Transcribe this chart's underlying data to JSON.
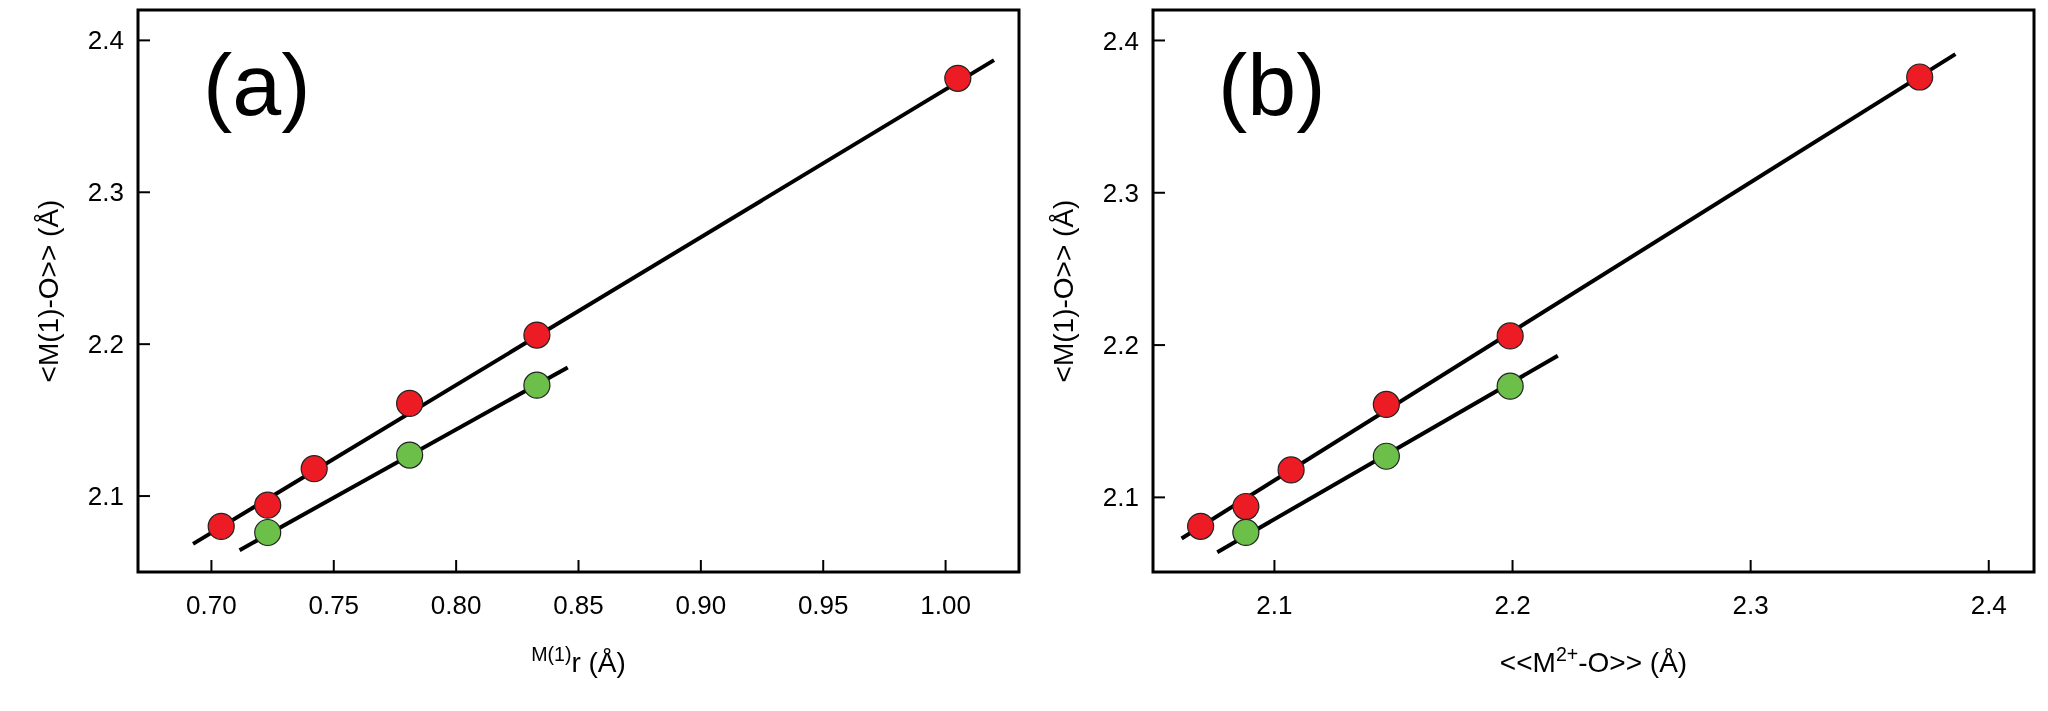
{
  "chart_data": [
    {
      "type": "scatter",
      "xlabel": "$^{M(1)}$r (Å)",
      "ylabel": "<M(1)-O>> (Å)",
      "annotations": [
        "(a)"
      ],
      "grid": false,
      "xlim": [
        0.67,
        1.03
      ],
      "xticks": [
        {
          "value": 0.7,
          "label": "0.70"
        },
        {
          "value": 0.75,
          "label": "0.75"
        },
        {
          "value": 0.8,
          "label": "0.80"
        },
        {
          "value": 0.85,
          "label": "0.85"
        },
        {
          "value": 0.9,
          "label": "0.90"
        },
        {
          "value": 0.95,
          "label": "0.95"
        },
        {
          "value": 1.0,
          "label": "1.00"
        }
      ],
      "ylim": [
        2.05,
        2.42
      ],
      "yticks": [
        2.1,
        2.2,
        2.3,
        2.4
      ],
      "series": [
        {
          "type": "line",
          "marker": "none",
          "color": "#000000",
          "x": [
            0.6925,
            1.0198
          ],
          "values": [
            2.0685,
            2.387
          ]
        },
        {
          "type": "line",
          "marker": "none",
          "color": "#000000",
          "x": [
            0.7115,
            0.8456
          ],
          "values": [
            2.0644,
            2.1847
          ]
        },
        {
          "marker": "circle",
          "color": "#ed1c24",
          "x": [
            0.704,
            0.723,
            0.742,
            0.781,
            0.833,
            1.005
          ],
          "values": [
            2.08,
            2.094,
            2.118,
            2.161,
            2.206,
            2.375
          ]
        },
        {
          "marker": "circle",
          "color": "#6cc04a",
          "x": [
            0.723,
            0.781,
            0.833
          ],
          "values": [
            2.076,
            2.127,
            2.173
          ]
        }
      ]
    },
    {
      "type": "scatter",
      "xlabel": "<<M$^{2+}$-O>> (Å)",
      "ylabel": "<M(1)-O>> (Å)",
      "annotations": [
        "(b)"
      ],
      "grid": false,
      "xlim": [
        2.049,
        2.419
      ],
      "xticks": [
        2.1,
        2.2,
        2.3,
        2.4
      ],
      "ylim": [
        2.051,
        2.42
      ],
      "yticks": [
        2.1,
        2.2,
        2.3,
        2.4
      ],
      "series": [
        {
          "type": "line",
          "marker": "none",
          "color": "#000000",
          "x": [
            2.061,
            2.386
          ],
          "values": [
            2.073,
            2.391
          ]
        },
        {
          "type": "line",
          "marker": "none",
          "color": "#000000",
          "x": [
            2.076,
            2.219
          ],
          "values": [
            2.064,
            2.193
          ]
        },
        {
          "marker": "circle",
          "color": "#ed1c24",
          "x": [
            2.069,
            2.088,
            2.107,
            2.147,
            2.199,
            2.371
          ],
          "values": [
            2.081,
            2.094,
            2.118,
            2.161,
            2.206,
            2.376
          ]
        },
        {
          "marker": "circle",
          "color": "#6cc04a",
          "x": [
            2.088,
            2.147,
            2.199
          ],
          "values": [
            2.077,
            2.127,
            2.173
          ]
        }
      ]
    }
  ]
}
